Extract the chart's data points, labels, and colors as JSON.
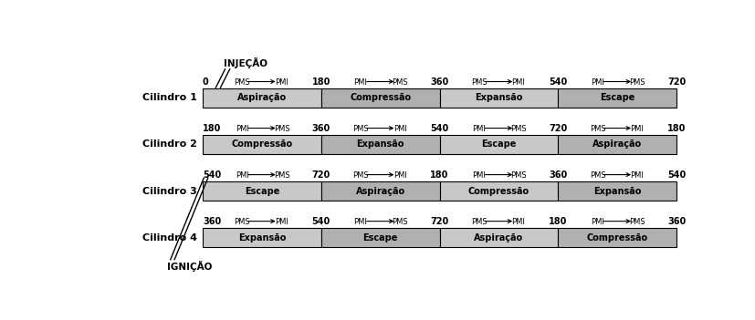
{
  "cylinders": [
    "Cilindro 1",
    "Cilindro 2",
    "Cilindro 3",
    "Cilindro 4"
  ],
  "phases": {
    "Cilindro 1": [
      "Aspiração",
      "Compressão",
      "Expansão",
      "Escape"
    ],
    "Cilindro 2": [
      "Compressão",
      "Expansão",
      "Escape",
      "Aspiração"
    ],
    "Cilindro 3": [
      "Escape",
      "Aspiração",
      "Compressão",
      "Expansão"
    ],
    "Cilindro 4": [
      "Expansão",
      "Escape",
      "Aspiração",
      "Compressão"
    ]
  },
  "axis_labels": {
    "Cilindro 1": [
      "0",
      "PMS",
      "PMI",
      "180",
      "PMI",
      "PMS",
      "360",
      "PMS",
      "PMI",
      "540",
      "PMI",
      "PMS",
      "720"
    ],
    "Cilindro 2": [
      "180",
      "PMI",
      "PMS",
      "360",
      "PMS",
      "PMI",
      "540",
      "PMI",
      "PMS",
      "720",
      "PMS",
      "PMI",
      "180"
    ],
    "Cilindro 3": [
      "540",
      "PMI",
      "PMS",
      "720",
      "PMS",
      "PMI",
      "180",
      "PMI",
      "PMS",
      "360",
      "PMS",
      "PMI",
      "540"
    ],
    "Cilindro 4": [
      "360",
      "PMS",
      "PMI",
      "540",
      "PMI",
      "PMS",
      "720",
      "PMS",
      "PMI",
      "180",
      "PMI",
      "PMS",
      "360"
    ]
  },
  "bar_color_light": "#c8c8c8",
  "bar_color_dark": "#b0b0b0",
  "bar_border": "#000000",
  "text_color": "#000000",
  "background_color": "#ffffff",
  "injecao_label": "INJEÇÃO",
  "ignicao_label": "IGNIÇÃO",
  "fig_width": 8.27,
  "fig_height": 3.51,
  "dpi": 100
}
